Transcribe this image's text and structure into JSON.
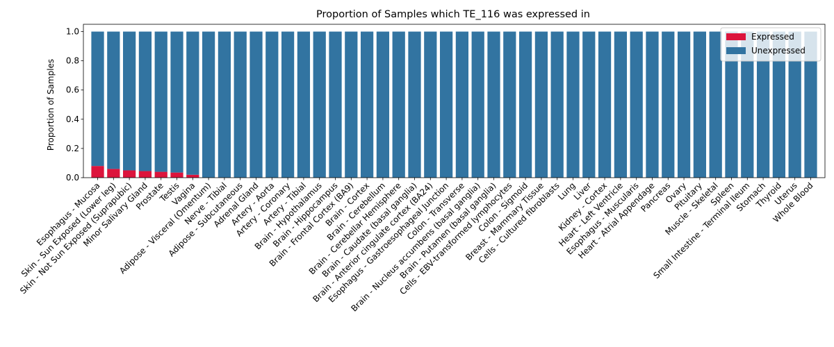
{
  "chart_data": {
    "type": "bar",
    "stacked": true,
    "title": "Proportion of Samples which TE_116 was expressed in",
    "xlabel": "",
    "ylabel": "Proportion of Samples",
    "ylim": [
      0,
      1.05
    ],
    "yticks": [
      "0.0",
      "0.2",
      "0.4",
      "0.6",
      "0.8",
      "1.0"
    ],
    "ytick_values": [
      0,
      0.2,
      0.4,
      0.6,
      0.8,
      1.0
    ],
    "grid": false,
    "legend_position": "top-right",
    "categories": [
      "Esophagus - Mucosa",
      "Skin - Sun Exposed (Lower leg)",
      "Skin - Not Sun Exposed (Suprapubic)",
      "Minor Salivary Gland",
      "Prostate",
      "Testis",
      "Vagina",
      "Adipose - Visceral (Omentum)",
      "Nerve - Tibial",
      "Adipose - Subcutaneous",
      "Adrenal Gland",
      "Artery - Aorta",
      "Artery - Coronary",
      "Artery - Tibial",
      "Brain - Hypothalamus",
      "Brain - Hippocampus",
      "Brain - Frontal Cortex (BA9)",
      "Brain - Cortex",
      "Brain - Cerebellum",
      "Brain - Cerebellar Hemisphere",
      "Brain - Caudate (basal ganglia)",
      "Brain - Anterior cingulate cortex (BA24)",
      "Esophagus - Gastroesophageal Junction",
      "Colon - Transverse",
      "Brain - Nucleus accumbens (basal ganglia)",
      "Brain - Putamen (basal ganglia)",
      "Cells - EBV-transformed lymphocytes",
      "Colon - Sigmoid",
      "Breast - Mammary Tissue",
      "Cells - Cultured fibroblasts",
      "Lung",
      "Liver",
      "Kidney - Cortex",
      "Heart - Left Ventricle",
      "Esophagus - Muscularis",
      "Heart - Atrial Appendage",
      "Pancreas",
      "Ovary",
      "Pituitary",
      "Muscle - Skeletal",
      "Spleen",
      "Small Intestine - Terminal Ileum",
      "Stomach",
      "Thyroid",
      "Uterus",
      "Whole Blood"
    ],
    "series": [
      {
        "name": "Expressed",
        "color": "#dc143c",
        "values": [
          0.08,
          0.06,
          0.05,
          0.045,
          0.04,
          0.035,
          0.02,
          0,
          0,
          0,
          0,
          0,
          0,
          0,
          0,
          0,
          0,
          0,
          0,
          0,
          0,
          0,
          0,
          0,
          0,
          0,
          0,
          0,
          0,
          0,
          0,
          0,
          0,
          0,
          0,
          0,
          0,
          0,
          0,
          0,
          0,
          0,
          0,
          0,
          0,
          0
        ]
      },
      {
        "name": "Unexpressed",
        "color": "#3274a1",
        "values": [
          0.92,
          0.94,
          0.95,
          0.955,
          0.96,
          0.965,
          0.98,
          1,
          1,
          1,
          1,
          1,
          1,
          1,
          1,
          1,
          1,
          1,
          1,
          1,
          1,
          1,
          1,
          1,
          1,
          1,
          1,
          1,
          1,
          1,
          1,
          1,
          1,
          1,
          1,
          1,
          1,
          1,
          1,
          1,
          1,
          1,
          1,
          1,
          1,
          1
        ]
      }
    ]
  }
}
